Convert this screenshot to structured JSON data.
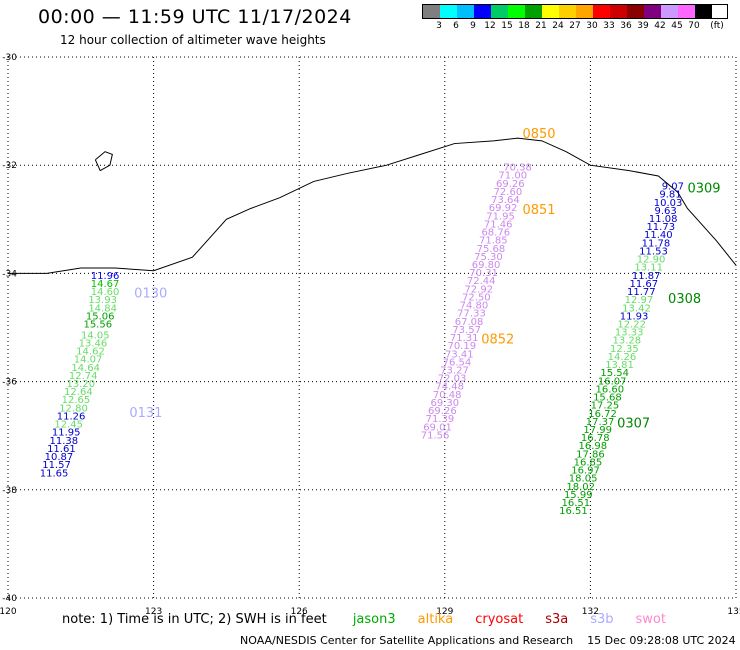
{
  "header": {
    "title": "00:00 — 11:59 UTC 11/17/2024",
    "subtitle": "12 hour collection of altimeter wave heights"
  },
  "legend": {
    "unit": "(ft)",
    "labels": [
      "3",
      "6",
      "9",
      "12",
      "15",
      "18",
      "21",
      "24",
      "27",
      "30",
      "33",
      "36",
      "39",
      "42",
      "45",
      "70"
    ],
    "colors": [
      "#7f7f7f",
      "#00ffff",
      "#00bfff",
      "#0000ff",
      "#00cc66",
      "#00ff00",
      "#00a000",
      "#ffff00",
      "#ffd000",
      "#ffa500",
      "#ff0000",
      "#cc0000",
      "#8b0000",
      "#800080",
      "#cc99ff",
      "#ff66ff",
      "#000000"
    ]
  },
  "map": {
    "lon_range": [
      120,
      135
    ],
    "lat_range": [
      -40,
      -30
    ],
    "x_ticks": [
      "120",
      "123",
      "126",
      "129",
      "132",
      "135"
    ],
    "y_ticks": [
      "-30",
      "-32",
      "-34",
      "-36",
      "-38",
      "-40"
    ],
    "grid": "dotted",
    "coastline": [
      [
        120,
        -34.0
      ],
      [
        120.8,
        -34.0
      ],
      [
        121.5,
        -33.9
      ],
      [
        122.2,
        -33.9
      ],
      [
        123.0,
        -33.95
      ],
      [
        123.8,
        -33.7
      ],
      [
        124.2,
        -33.3
      ],
      [
        124.5,
        -33.0
      ],
      [
        125.0,
        -32.8
      ],
      [
        125.6,
        -32.6
      ],
      [
        126.3,
        -32.3
      ],
      [
        127.0,
        -32.15
      ],
      [
        127.8,
        -32.0
      ],
      [
        128.5,
        -31.8
      ],
      [
        129.2,
        -31.6
      ],
      [
        130.0,
        -31.55
      ],
      [
        130.5,
        -31.5
      ],
      [
        131.0,
        -31.55
      ],
      [
        131.5,
        -31.75
      ],
      [
        132.0,
        -32.0
      ],
      [
        132.8,
        -32.1
      ],
      [
        133.4,
        -32.2
      ],
      [
        133.8,
        -32.5
      ],
      [
        134.0,
        -32.8
      ],
      [
        134.3,
        -33.1
      ],
      [
        134.6,
        -33.4
      ],
      [
        135.0,
        -33.85
      ]
    ],
    "island": [
      [
        121.8,
        -31.9
      ],
      [
        122.0,
        -31.75
      ],
      [
        122.15,
        -31.8
      ],
      [
        122.1,
        -32.0
      ],
      [
        121.9,
        -32.1
      ],
      [
        121.8,
        -31.9
      ]
    ],
    "point_sets": [
      {
        "color": "#0000ff",
        "points": [
          [
            122.0,
            -34.1,
            "11.96"
          ]
        ]
      },
      {
        "color": "#00c000",
        "points": [
          [
            122.0,
            -34.25,
            "14.67"
          ]
        ]
      },
      {
        "color": "#66dd66",
        "points": [
          [
            122.0,
            -34.4,
            "14.60"
          ],
          [
            121.95,
            -34.55,
            "13.93"
          ],
          [
            121.95,
            -34.7,
            "14.84"
          ]
        ]
      },
      {
        "color": "#00a000",
        "points": [
          [
            121.9,
            -34.85,
            "15.06"
          ],
          [
            121.85,
            -35.0,
            "15.56"
          ]
        ]
      },
      {
        "color": "#66dd66",
        "points": [
          [
            121.8,
            -35.2,
            "14.05"
          ],
          [
            121.75,
            -35.35,
            "13.46"
          ],
          [
            121.7,
            -35.5,
            "14.62"
          ],
          [
            121.65,
            -35.65,
            "14.07"
          ],
          [
            121.6,
            -35.8,
            "14.64"
          ],
          [
            121.55,
            -35.95,
            "12.74"
          ],
          [
            121.5,
            -36.1,
            "13.20"
          ],
          [
            121.45,
            -36.25,
            "12.64"
          ],
          [
            121.4,
            -36.4,
            "12.65"
          ],
          [
            121.35,
            -36.55,
            "12.80"
          ]
        ]
      },
      {
        "color": "#0000cc",
        "points": [
          [
            121.3,
            -36.7,
            "11.26"
          ]
        ]
      },
      {
        "color": "#66dd66",
        "points": [
          [
            121.25,
            -36.85,
            "12.45"
          ]
        ]
      },
      {
        "color": "#0000cc",
        "points": [
          [
            121.2,
            -37.0,
            "11.95"
          ],
          [
            121.15,
            -37.15,
            "11.38"
          ],
          [
            121.1,
            -37.3,
            "11.61"
          ],
          [
            121.05,
            -37.45,
            "10.87"
          ],
          [
            121.0,
            -37.6,
            "11.57"
          ],
          [
            120.95,
            -37.75,
            "11.65"
          ]
        ]
      },
      {
        "color": "#cc88ee",
        "points": [
          [
            130.5,
            -32.1,
            "70.38"
          ],
          [
            130.4,
            -32.25,
            "71.00"
          ],
          [
            130.35,
            -32.4,
            "69.26"
          ],
          [
            130.3,
            -32.55,
            "72.60"
          ],
          [
            130.25,
            -32.7,
            "73.64"
          ],
          [
            130.2,
            -32.85,
            "69.92"
          ],
          [
            130.15,
            -33.0,
            "71.95"
          ],
          [
            130.1,
            -33.15,
            "71.46"
          ],
          [
            130.05,
            -33.3,
            "68.76"
          ],
          [
            130.0,
            -33.45,
            "71.85"
          ],
          [
            129.95,
            -33.6,
            "75.68"
          ],
          [
            129.9,
            -33.75,
            "75.30"
          ],
          [
            129.85,
            -33.9,
            "69.80"
          ],
          [
            129.8,
            -34.05,
            "70.31"
          ],
          [
            129.75,
            -34.2,
            "72.44"
          ],
          [
            129.7,
            -34.35,
            "72.92"
          ],
          [
            129.65,
            -34.5,
            "72.50"
          ],
          [
            129.6,
            -34.65,
            "74.80"
          ],
          [
            129.55,
            -34.8,
            "77.33"
          ],
          [
            129.5,
            -34.95,
            "67.08"
          ],
          [
            129.45,
            -35.1,
            "73.57"
          ],
          [
            129.4,
            -35.25,
            "71.31"
          ],
          [
            129.35,
            -35.4,
            "70.19"
          ],
          [
            129.3,
            -35.55,
            "73.41"
          ],
          [
            129.25,
            -35.7,
            "76.54"
          ],
          [
            129.2,
            -35.85,
            "73.27"
          ],
          [
            129.15,
            -36.0,
            "72.03"
          ],
          [
            129.1,
            -36.15,
            "74.48"
          ],
          [
            129.05,
            -36.3,
            "70.48"
          ],
          [
            129.0,
            -36.45,
            "69.30"
          ],
          [
            128.95,
            -36.6,
            "69.26"
          ],
          [
            128.9,
            -36.75,
            "71.39"
          ],
          [
            128.85,
            -36.9,
            "69.01"
          ],
          [
            128.8,
            -37.05,
            "71.56"
          ]
        ]
      },
      {
        "color": "#0000cc",
        "points": [
          [
            133.7,
            -32.45,
            "9.07"
          ],
          [
            133.65,
            -32.6,
            "9.81"
          ],
          [
            133.6,
            -32.75,
            "10.03"
          ],
          [
            133.55,
            -32.9,
            "9.63"
          ],
          [
            133.5,
            -33.05,
            "11.08"
          ],
          [
            133.45,
            -33.2,
            "11.73"
          ],
          [
            133.4,
            -33.35,
            "11.40"
          ],
          [
            133.35,
            -33.5,
            "11.78"
          ],
          [
            133.3,
            -33.65,
            "11.53"
          ]
        ]
      },
      {
        "color": "#66dd66",
        "points": [
          [
            133.25,
            -33.8,
            "12.90"
          ],
          [
            133.2,
            -33.95,
            "13.11"
          ]
        ]
      },
      {
        "color": "#0000cc",
        "points": [
          [
            133.15,
            -34.1,
            "11.87"
          ],
          [
            133.1,
            -34.25,
            "11.67"
          ],
          [
            133.05,
            -34.4,
            "11.77"
          ]
        ]
      },
      {
        "color": "#66dd66",
        "points": [
          [
            133.0,
            -34.55,
            "12.97"
          ],
          [
            132.95,
            -34.7,
            "13.42"
          ]
        ]
      },
      {
        "color": "#0000cc",
        "points": [
          [
            132.9,
            -34.85,
            "11.93"
          ]
        ]
      },
      {
        "color": "#66dd66",
        "points": [
          [
            132.85,
            -35.0,
            "12.22"
          ],
          [
            132.8,
            -35.15,
            "13.33"
          ],
          [
            132.75,
            -35.3,
            "13.28"
          ],
          [
            132.7,
            -35.45,
            "12.35"
          ],
          [
            132.65,
            -35.6,
            "14.26"
          ],
          [
            132.6,
            -35.75,
            "13.81"
          ]
        ]
      },
      {
        "color": "#00a000",
        "points": [
          [
            132.5,
            -35.9,
            "15.54"
          ],
          [
            132.45,
            -36.05,
            "16.07"
          ],
          [
            132.4,
            -36.2,
            "16.60"
          ],
          [
            132.35,
            -36.35,
            "15.68"
          ],
          [
            132.3,
            -36.5,
            "17.25"
          ],
          [
            132.25,
            -36.65,
            "16.72"
          ],
          [
            132.2,
            -36.8,
            "17.37"
          ],
          [
            132.15,
            -36.95,
            "17.99"
          ],
          [
            132.1,
            -37.1,
            "16.78"
          ],
          [
            132.05,
            -37.25,
            "16.98"
          ],
          [
            132.0,
            -37.4,
            "17.86"
          ],
          [
            131.95,
            -37.55,
            "16.85"
          ],
          [
            131.9,
            -37.7,
            "16.97"
          ],
          [
            131.85,
            -37.85,
            "18.05"
          ],
          [
            131.8,
            -38.0,
            "18.02"
          ],
          [
            131.75,
            -38.15,
            "15.99"
          ],
          [
            131.7,
            -38.3,
            "16.51"
          ],
          [
            131.65,
            -38.45,
            "16.51"
          ]
        ]
      }
    ],
    "pass_labels": [
      {
        "lon": 122.6,
        "lat": -34.45,
        "text": "0130",
        "color": "#aaaaff"
      },
      {
        "lon": 122.5,
        "lat": -36.65,
        "text": "0131",
        "color": "#aaaaff"
      },
      {
        "lon": 130.6,
        "lat": -31.5,
        "text": "0850",
        "color": "#ff9900"
      },
      {
        "lon": 130.6,
        "lat": -32.9,
        "text": "0851",
        "color": "#ff9900"
      },
      {
        "lon": 129.75,
        "lat": -35.3,
        "text": "0852",
        "color": "#ff9900"
      },
      {
        "lon": 134.0,
        "lat": -32.5,
        "text": "0309",
        "color": "#008800"
      },
      {
        "lon": 133.6,
        "lat": -34.55,
        "text": "0308",
        "color": "#008800"
      },
      {
        "lon": 132.55,
        "lat": -36.85,
        "text": "0307",
        "color": "#008800"
      }
    ]
  },
  "footer": {
    "note": "note:  1) Time is in UTC; 2) SWH is in feet",
    "satellites": [
      {
        "name": "jason3",
        "color": "#00aa00"
      },
      {
        "name": "altika",
        "color": "#ff9900"
      },
      {
        "name": "cryosat",
        "color": "#ff0000"
      },
      {
        "name": "s3a",
        "color": "#aa0000"
      },
      {
        "name": "s3b",
        "color": "#aaaaff"
      },
      {
        "name": "swot",
        "color": "#ff88cc"
      }
    ],
    "credit": "NOAA/NESDIS Center for Satellite Applications and Research",
    "timestamp": "15 Dec 09:28:08 UTC 2024"
  }
}
